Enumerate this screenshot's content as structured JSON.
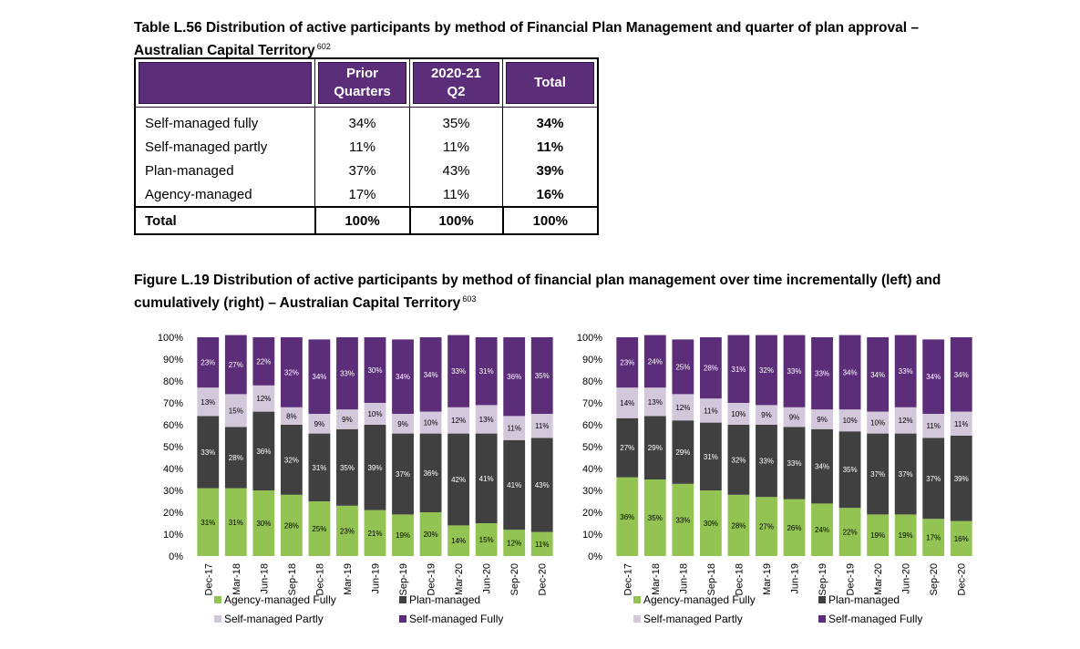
{
  "table": {
    "title": "Table L.56 Distribution of active participants by method of Financial Plan Management and quarter of plan approval – Australian Capital Territory",
    "footnote": "602",
    "headers": [
      "",
      "Prior Quarters",
      "2020-21 Q2",
      "Total"
    ],
    "rows": [
      [
        "Self-managed fully",
        "34%",
        "35%",
        "34%"
      ],
      [
        "Self-managed partly",
        "11%",
        "11%",
        "11%"
      ],
      [
        "Plan-managed",
        "37%",
        "43%",
        "39%"
      ],
      [
        "Agency-managed",
        "17%",
        "11%",
        "16%"
      ],
      [
        "Total",
        "100%",
        "100%",
        "100%"
      ]
    ]
  },
  "figure": {
    "title": "Figure L.19 Distribution of active participants by method of financial plan management over time incrementally (left) and cumulatively (right) – Australian Capital Territory",
    "footnote": "603"
  },
  "colors": {
    "agency": "#92c353",
    "plan": "#404040",
    "self_partly": "#d3c7dc",
    "self_fully": "#5c2d79",
    "header_bg": "#5c2d79"
  },
  "chart_data": [
    {
      "type": "bar",
      "stacked": true,
      "categories": [
        "Dec-17",
        "Mar-18",
        "Jun-18",
        "Sep-18",
        "Dec-18",
        "Mar-19",
        "Jun-19",
        "Sep-19",
        "Dec-19",
        "Mar-20",
        "Jun-20",
        "Sep-20",
        "Dec-20"
      ],
      "ylim": [
        0,
        100
      ],
      "yticks": [
        "0%",
        "10%",
        "20%",
        "30%",
        "40%",
        "50%",
        "60%",
        "70%",
        "80%",
        "90%",
        "100%"
      ],
      "legend_position": "bottom",
      "series": [
        {
          "name": "Agency-managed Fully",
          "values": [
            31,
            31,
            30,
            28,
            25,
            23,
            21,
            19,
            20,
            14,
            15,
            12,
            11
          ]
        },
        {
          "name": "Plan-managed",
          "values": [
            33,
            28,
            36,
            32,
            31,
            35,
            39,
            37,
            36,
            42,
            41,
            41,
            43
          ]
        },
        {
          "name": "Self-managed Partly",
          "values": [
            13,
            15,
            12,
            8,
            9,
            9,
            10,
            9,
            10,
            12,
            13,
            11,
            11
          ]
        },
        {
          "name": "Self-managed Fully",
          "values": [
            23,
            27,
            22,
            32,
            34,
            33,
            30,
            34,
            34,
            33,
            31,
            36,
            35
          ]
        }
      ]
    },
    {
      "type": "bar",
      "stacked": true,
      "categories": [
        "Dec-17",
        "Mar-18",
        "Jun-18",
        "Sep-18",
        "Dec-18",
        "Mar-19",
        "Jun-19",
        "Sep-19",
        "Dec-19",
        "Mar-20",
        "Jun-20",
        "Sep-20",
        "Dec-20"
      ],
      "ylim": [
        0,
        100
      ],
      "yticks": [
        "0%",
        "10%",
        "20%",
        "30%",
        "40%",
        "50%",
        "60%",
        "70%",
        "80%",
        "90%",
        "100%"
      ],
      "legend_position": "bottom",
      "series": [
        {
          "name": "Agency-managed Fully",
          "values": [
            36,
            35,
            33,
            30,
            28,
            27,
            26,
            24,
            22,
            19,
            19,
            17,
            16
          ]
        },
        {
          "name": "Plan-managed",
          "values": [
            27,
            29,
            29,
            31,
            32,
            33,
            33,
            34,
            35,
            37,
            37,
            37,
            39
          ]
        },
        {
          "name": "Self-managed Partly",
          "values": [
            14,
            13,
            12,
            11,
            10,
            9,
            9,
            9,
            10,
            10,
            12,
            11,
            11
          ]
        },
        {
          "name": "Self-managed Fully",
          "values": [
            23,
            24,
            25,
            28,
            31,
            32,
            33,
            33,
            34,
            34,
            33,
            34,
            34
          ]
        }
      ]
    }
  ]
}
